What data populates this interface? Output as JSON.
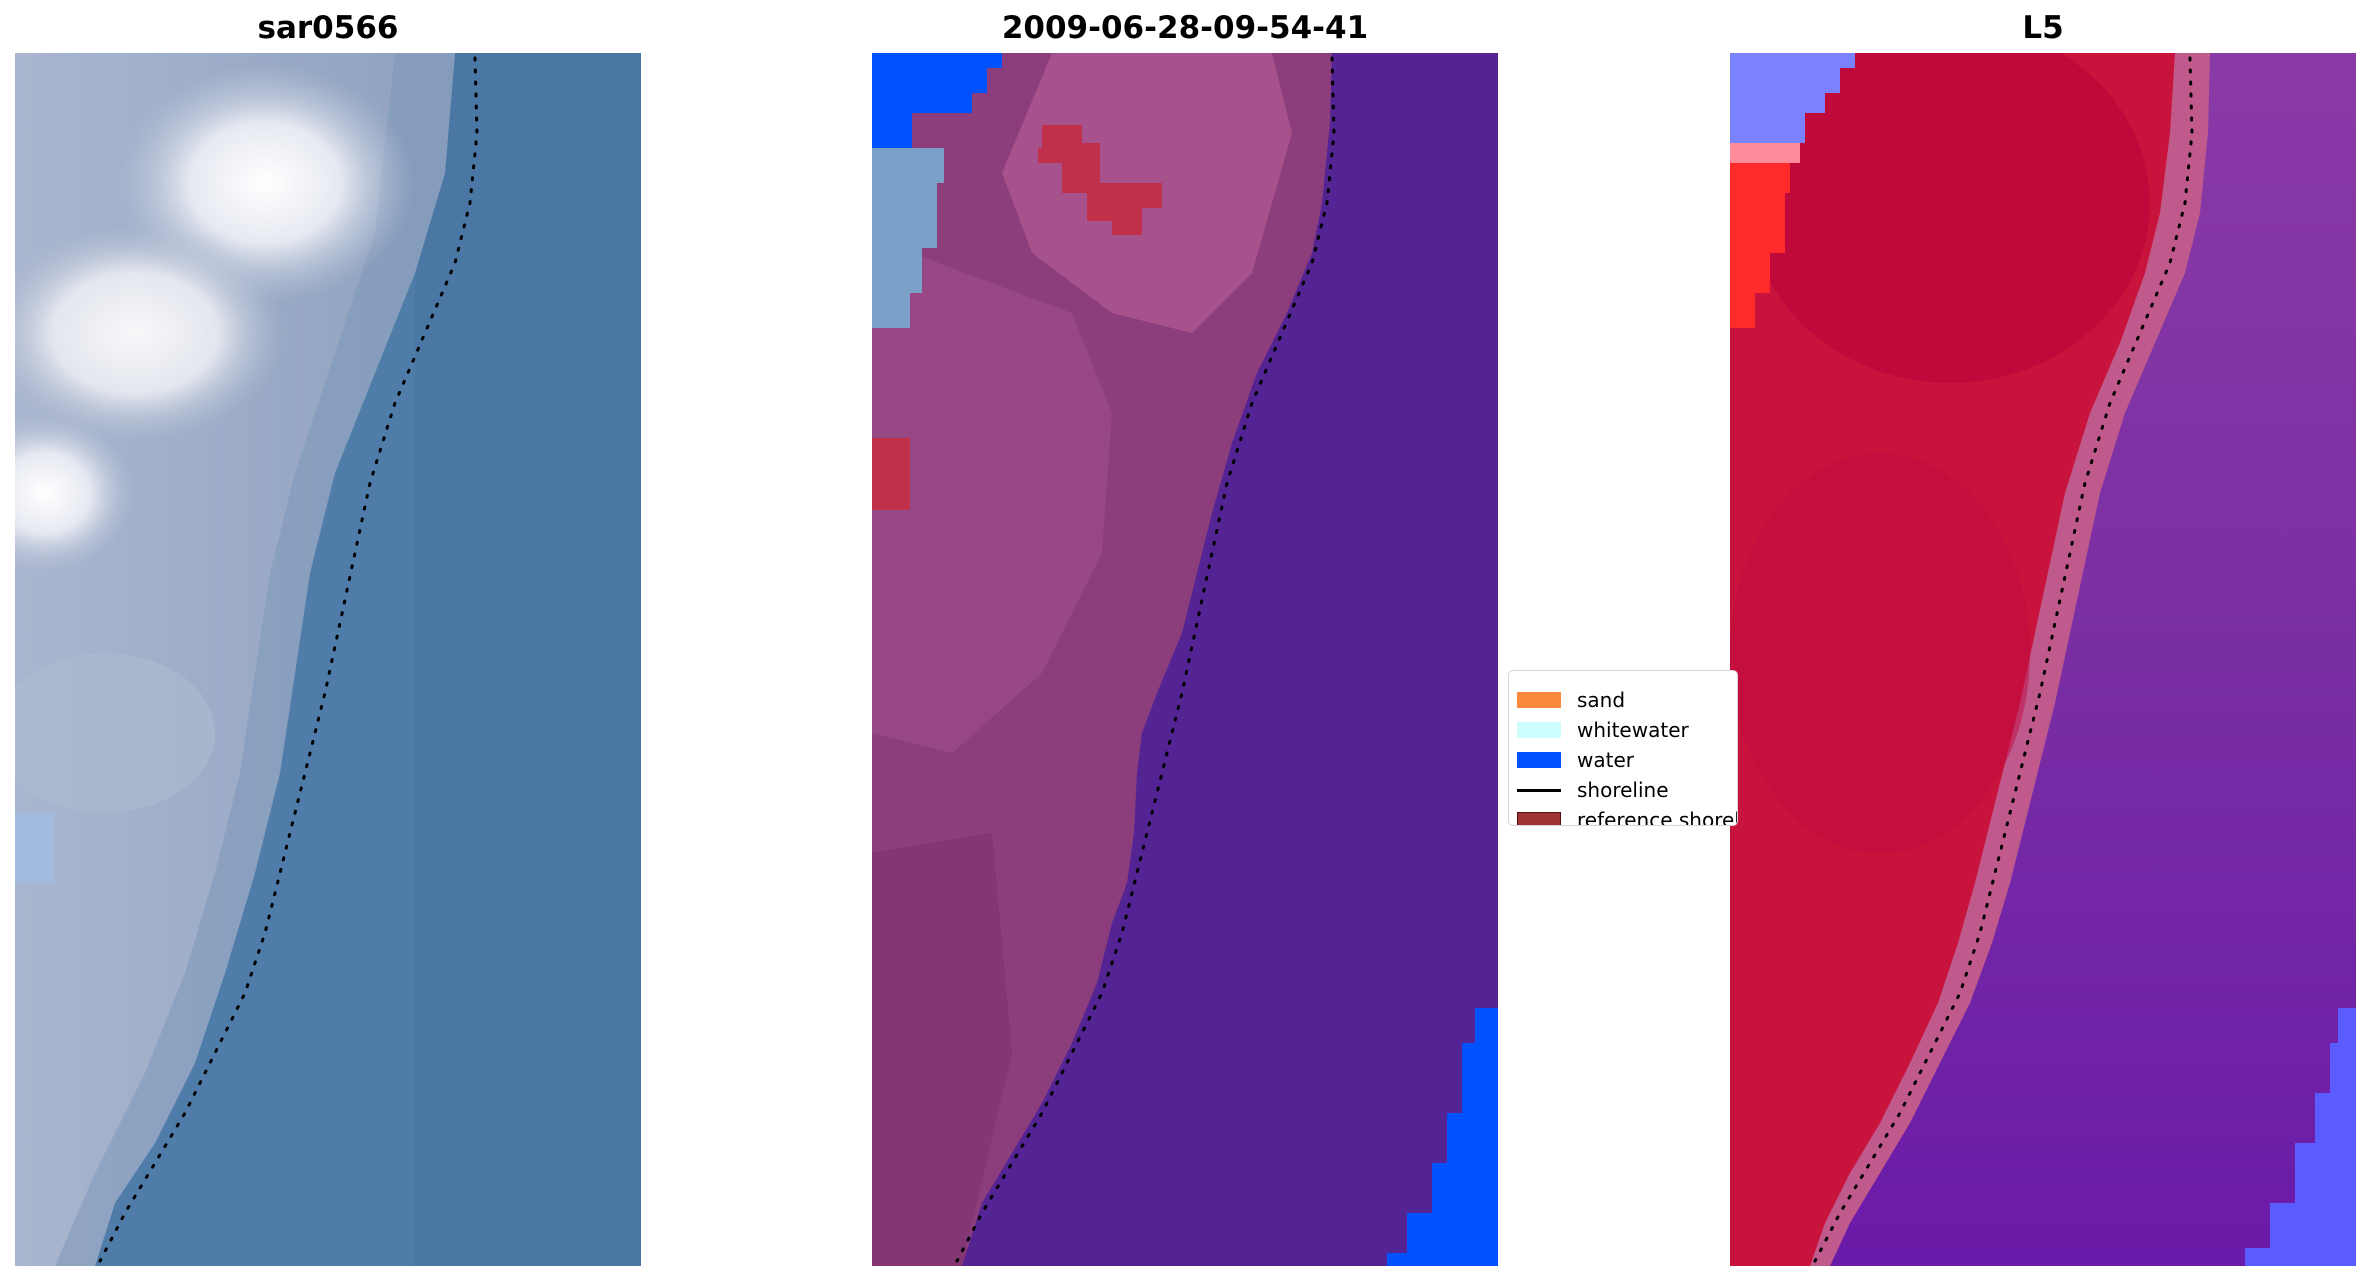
{
  "panels": [
    {
      "title": "sar0566",
      "kind": "rgb-image"
    },
    {
      "title": "2009-06-28-09-54-41",
      "kind": "classified-image"
    },
    {
      "title": "L5",
      "kind": "index-image"
    }
  ],
  "legend": {
    "items": [
      {
        "label": "sand",
        "color": "#fb8a3c",
        "shape": "patch"
      },
      {
        "label": "whitewater",
        "color": "#cbfdfd",
        "shape": "patch"
      },
      {
        "label": "water",
        "color": "#0052ff",
        "shape": "patch"
      },
      {
        "label": "shoreline",
        "color": "#000000",
        "shape": "line"
      },
      {
        "label": "reference shoreline",
        "color": "#a03434",
        "shape": "patch"
      }
    ]
  },
  "colors": {
    "sea_rgb": "#4d7aa6",
    "land_rgb": "#93a3c3",
    "cloud_rgb": "#f2f2f4",
    "land_classified": "#8a3a7a",
    "sea_classified": "#542494",
    "water_class": "#0052ff",
    "reference_shoreline": "#c0304a",
    "land_index": "#c8143c",
    "sea_index": "#7a2ca0",
    "water_index": "#5a5cff"
  }
}
